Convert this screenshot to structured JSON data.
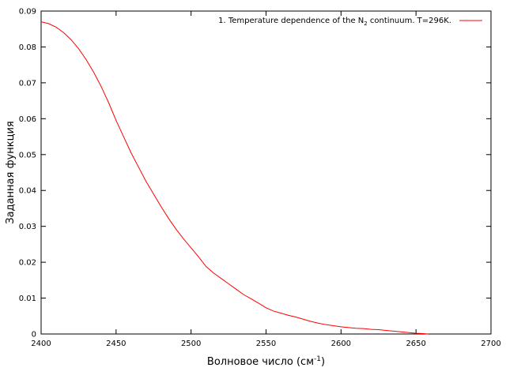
{
  "chart_data": {
    "type": "line",
    "title": "",
    "xlabel": "Волновое число (см",
    "xlabel_sup": "-1",
    "xlabel_end": ")",
    "ylabel": "Заданная функция",
    "xlim": [
      2400,
      2700
    ],
    "ylim": [
      0,
      0.09
    ],
    "x_ticks": [
      2400,
      2450,
      2500,
      2550,
      2600,
      2650,
      2700
    ],
    "y_ticks": [
      0,
      0.01,
      0.02,
      0.03,
      0.04,
      0.05,
      0.06,
      0.07,
      0.08,
      0.09
    ],
    "x_tick_labels": [
      "2400",
      "2450",
      "2500",
      "2550",
      "2600",
      "2650",
      "2700"
    ],
    "y_tick_labels": [
      "0",
      "0.01",
      "0.02",
      "0.03",
      "0.04",
      "0.05",
      "0.06",
      "0.07",
      "0.08",
      "0.09"
    ],
    "grid": false,
    "legend_position": "top-right",
    "series": [
      {
        "name": "1. Temperature dependence of the N2 continuum. T=296K.",
        "legend_prefix": "1. Temperature dependence of the N",
        "legend_sub": "2",
        "legend_suffix": " continuum. T=296K.",
        "color": "#ff0000",
        "x": [
          2400,
          2405,
          2410,
          2415,
          2420,
          2425,
          2430,
          2435,
          2440,
          2445,
          2450,
          2455,
          2460,
          2465,
          2470,
          2475,
          2480,
          2485,
          2490,
          2495,
          2500,
          2505,
          2510,
          2515,
          2520,
          2525,
          2530,
          2535,
          2540,
          2545,
          2550,
          2555,
          2560,
          2565,
          2570,
          2575,
          2580,
          2585,
          2590,
          2595,
          2600,
          2605,
          2610,
          2615,
          2620,
          2625,
          2630,
          2635,
          2640,
          2645,
          2650,
          2655,
          2658
        ],
        "y": [
          0.087,
          0.0865,
          0.0855,
          0.084,
          0.082,
          0.0795,
          0.0765,
          0.073,
          0.069,
          0.0645,
          0.0595,
          0.055,
          0.0505,
          0.0465,
          0.0425,
          0.039,
          0.0355,
          0.0322,
          0.0292,
          0.0265,
          0.024,
          0.0215,
          0.0188,
          0.017,
          0.0155,
          0.014,
          0.0125,
          0.011,
          0.0098,
          0.0086,
          0.0073,
          0.0064,
          0.0058,
          0.0052,
          0.0047,
          0.0041,
          0.0035,
          0.003,
          0.0026,
          0.0023,
          0.002,
          0.0018,
          0.0016,
          0.0015,
          0.0013,
          0.0012,
          0.001,
          0.0008,
          0.0006,
          0.0004,
          0.0002,
          0.0001,
          0
        ]
      }
    ]
  }
}
